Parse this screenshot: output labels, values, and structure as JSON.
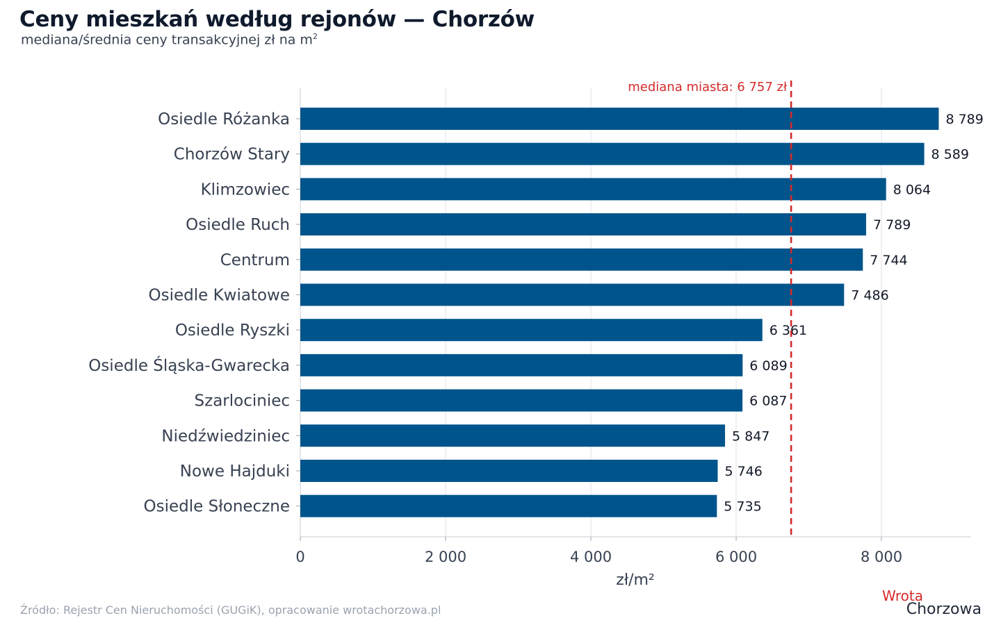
{
  "title": "Ceny mieszkań według rejonów — Chorzów",
  "subtitle": "mediana/średnia ceny transakcyjnej zł na m",
  "subtitle_sup": "2",
  "source": "Źródło: Rejestr Cen Nieruchomości (GUGiK), opracowanie wrotachorzowa.pl",
  "logo": {
    "top": "Wrota",
    "bottom": "Chorzowa"
  },
  "colors": {
    "bar": "#00548c",
    "median": "#d42a2a",
    "grid": "#e5e7eb",
    "text": "#374151"
  },
  "chart_data": {
    "type": "bar",
    "orientation": "horizontal",
    "title": "Ceny mieszkań według rejonów — Chorzów",
    "subtitle": "mediana/średnia ceny transakcyjnej zł na m²",
    "xlabel": "zł/m²",
    "ylabel": "",
    "xlim": [
      0,
      9250
    ],
    "xticks": [
      0,
      2000,
      4000,
      6000,
      8000
    ],
    "xtick_labels": [
      "0",
      "2 000",
      "4 000",
      "6 000",
      "8 000"
    ],
    "grid": "vertical",
    "categories": [
      "Osiedle Różanka",
      "Chorzów Stary",
      "Klimzowiec",
      "Osiedle Ruch",
      "Centrum",
      "Osiedle Kwiatowe",
      "Osiedle Ryszki",
      "Osiedle Śląska-Gwarecka",
      "Szarlociniec",
      "Niedźwiedziniec",
      "Nowe Hajduki",
      "Osiedle Słoneczne"
    ],
    "values": [
      8789,
      8589,
      8064,
      7789,
      7744,
      7486,
      6361,
      6089,
      6087,
      5847,
      5746,
      5735
    ],
    "value_labels": [
      "8 789",
      "8 589",
      "8 064",
      "7 789",
      "7 744",
      "7 486",
      "6 361",
      "6 089",
      "6 087",
      "5 847",
      "5 746",
      "5 735"
    ],
    "reference_line": {
      "value": 6757,
      "label": "mediana miasta: 6 757 zł",
      "style": "dashed"
    }
  }
}
